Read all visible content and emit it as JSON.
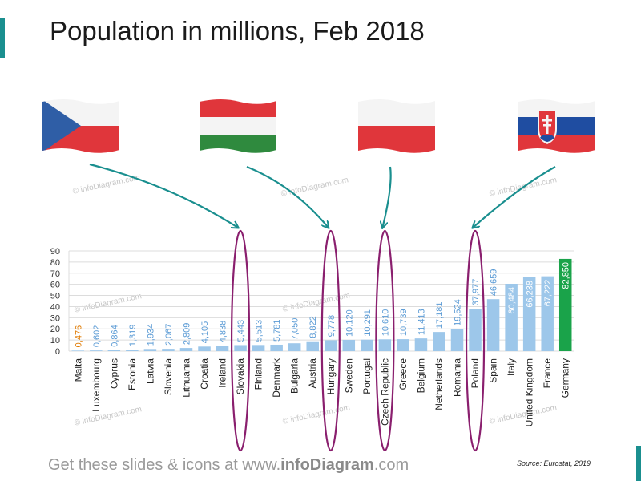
{
  "title": "Population in millions, Feb 2018",
  "footer": {
    "prefix": "Get these slides & icons at www.",
    "brand": "infoDiagram",
    "suffix": ".com"
  },
  "source": "Source: Eurostat, 2019",
  "watermark": "© infoDiagram.com",
  "flags": [
    {
      "country": "Czech Republic",
      "icon": "czech-flag-icon"
    },
    {
      "country": "Hungary",
      "icon": "hungary-flag-icon"
    },
    {
      "country": "Poland",
      "icon": "poland-flag-icon"
    },
    {
      "country": "Slovakia",
      "icon": "slovakia-flag-icon"
    }
  ],
  "colors": {
    "bar": "#9dc7ea",
    "highlight_bar": "#1aa34a",
    "value_label": "#5b9bd5",
    "highlight_label": "#e07a00",
    "ellipse": "#8a1f6e",
    "arrow": "#1a8f8f"
  },
  "chart_data": {
    "type": "bar",
    "categories": [
      "Malta",
      "Luxembourg",
      "Cyprus",
      "Estonia",
      "Latvia",
      "Slovenia",
      "Lithuania",
      "Croatia",
      "Ireland",
      "Slovakia",
      "Finland",
      "Denmark",
      "Bulgaria",
      "Austria",
      "Hungary",
      "Sweden",
      "Portugal",
      "Czech Republic",
      "Greece",
      "Belgium",
      "Netherlands",
      "Romania",
      "Poland",
      "Spain",
      "Italy",
      "United Kingdom",
      "France",
      "Germany"
    ],
    "values": [
      0.476,
      0.602,
      0.864,
      1.319,
      1.934,
      2.067,
      2.809,
      4.105,
      4.838,
      5.443,
      5.513,
      5.781,
      7.05,
      8.822,
      9.778,
      10.12,
      10.291,
      10.61,
      10.739,
      11.413,
      17.181,
      19.524,
      37.977,
      46.659,
      60.484,
      66.238,
      67.222,
      82.85
    ],
    "value_labels": [
      "0,476",
      "0,602",
      "0,864",
      "1,319",
      "1,934",
      "2,067",
      "2,809",
      "4,105",
      "4,838",
      "5,443",
      "5,513",
      "5,781",
      "7,050",
      "8,822",
      "9,778",
      "10,120",
      "10,291",
      "10,610",
      "10,739",
      "11,413",
      "17,181",
      "19,524",
      "37,977",
      "46,659",
      "60,484",
      "66,238",
      "67,222",
      "82,850"
    ],
    "yticks": [
      0,
      10,
      20,
      30,
      40,
      50,
      60,
      70,
      80,
      90
    ],
    "ylim": [
      0,
      90
    ],
    "grid": true,
    "highlighted": [
      "Slovakia",
      "Hungary",
      "Czech Republic",
      "Poland"
    ],
    "max_category": "Germany",
    "min_category": "Malta"
  }
}
